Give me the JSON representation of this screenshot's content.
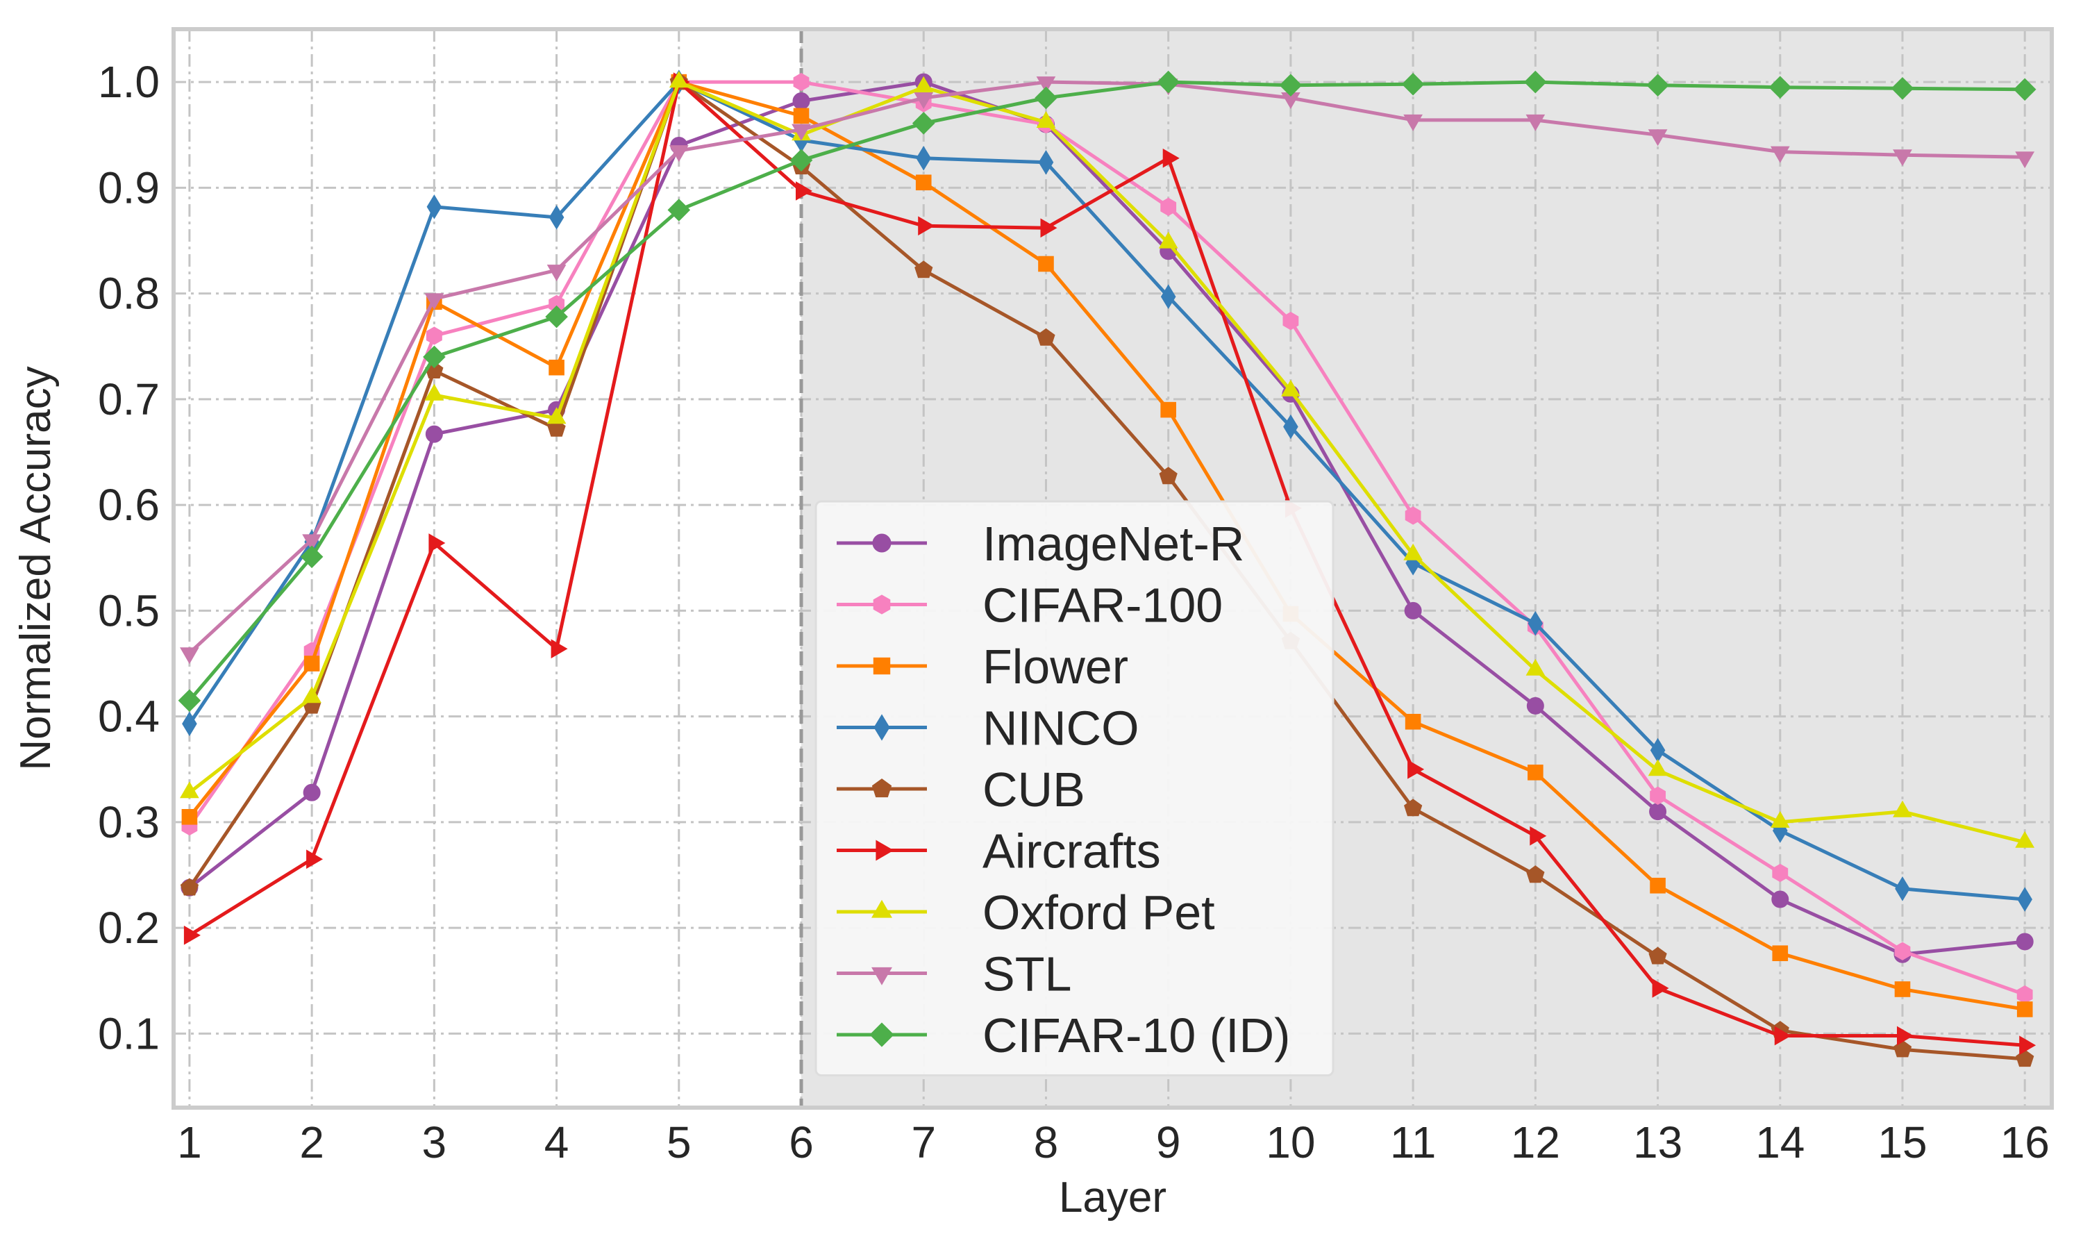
{
  "chart_data": {
    "type": "line",
    "title": "",
    "xlabel": "Layer",
    "ylabel": "Normalized  Accuracy",
    "x": [
      1,
      2,
      3,
      4,
      5,
      6,
      7,
      8,
      9,
      10,
      11,
      12,
      13,
      14,
      15,
      16
    ],
    "xlim": [
      0.87,
      16.22
    ],
    "ylim": [
      0.03,
      1.05
    ],
    "yticks": [
      0.1,
      0.2,
      0.3,
      0.4,
      0.5,
      0.6,
      0.7,
      0.8,
      0.9,
      1.0
    ],
    "ytick_labels": [
      "0.1",
      "0.2",
      "0.3",
      "0.4",
      "0.5",
      "0.6",
      "0.7",
      "0.8",
      "0.9",
      "1.0"
    ],
    "xtick_labels": [
      "1",
      "2",
      "3",
      "4",
      "5",
      "6",
      "7",
      "8",
      "9",
      "10",
      "11",
      "12",
      "13",
      "14",
      "15",
      "16"
    ],
    "shaded_region": {
      "from_x": 6,
      "to_x": 16.22,
      "color": "#e5e5e5"
    },
    "vline_x": 6,
    "grid": true,
    "legend_position": "center",
    "series": [
      {
        "name": "ImageNet-R",
        "color": "#984ea3",
        "marker": "circle",
        "values": [
          0.238,
          0.328,
          0.667,
          0.69,
          0.94,
          0.982,
          1.0,
          0.96,
          0.84,
          0.705,
          0.5,
          0.41,
          0.31,
          0.227,
          0.175,
          0.187
        ]
      },
      {
        "name": "CIFAR-100",
        "color": "#f781bf",
        "marker": "hexagon",
        "values": [
          0.296,
          0.462,
          0.76,
          0.79,
          1.0,
          1.0,
          0.98,
          0.96,
          0.882,
          0.774,
          0.59,
          0.485,
          0.325,
          0.252,
          0.178,
          0.137
        ]
      },
      {
        "name": "Flower",
        "color": "#ff7f00",
        "marker": "square",
        "values": [
          0.305,
          0.45,
          0.792,
          0.73,
          1.0,
          0.968,
          0.905,
          0.828,
          0.69,
          0.497,
          0.395,
          0.347,
          0.24,
          0.176,
          0.142,
          0.123
        ]
      },
      {
        "name": "NINCO",
        "color": "#377eb8",
        "marker": "thin_diamond",
        "values": [
          0.393,
          0.565,
          0.882,
          0.872,
          1.0,
          0.945,
          0.928,
          0.924,
          0.797,
          0.674,
          0.545,
          0.488,
          0.368,
          0.292,
          0.237,
          0.227
        ]
      },
      {
        "name": "CUB",
        "color": "#a65628",
        "marker": "pentagon",
        "values": [
          0.238,
          0.41,
          0.727,
          0.672,
          1.0,
          0.92,
          0.822,
          0.758,
          0.627,
          0.471,
          0.313,
          0.25,
          0.173,
          0.103,
          0.085,
          0.076
        ]
      },
      {
        "name": "Aircrafts",
        "color": "#e41a1c",
        "marker": "triangle_right",
        "values": [
          0.193,
          0.265,
          0.564,
          0.464,
          1.0,
          0.897,
          0.864,
          0.862,
          0.928,
          0.597,
          0.35,
          0.287,
          0.143,
          0.098,
          0.098,
          0.089
        ]
      },
      {
        "name": "Oxford Pet",
        "color": "#dede00",
        "marker": "triangle_up",
        "values": [
          0.328,
          0.418,
          0.704,
          0.682,
          1.0,
          0.95,
          0.995,
          0.962,
          0.848,
          0.708,
          0.553,
          0.444,
          0.349,
          0.3,
          0.31,
          0.281
        ]
      },
      {
        "name": "STL",
        "color": "#c878aa",
        "marker": "triangle_down",
        "values": [
          0.46,
          0.567,
          0.795,
          0.822,
          0.935,
          0.955,
          0.985,
          1.0,
          0.998,
          0.985,
          0.964,
          0.964,
          0.95,
          0.934,
          0.931,
          0.929
        ]
      },
      {
        "name": "CIFAR-10 (ID)",
        "color": "#4daf4a",
        "marker": "diamond",
        "values": [
          0.415,
          0.551,
          0.74,
          0.778,
          0.879,
          0.926,
          0.961,
          0.985,
          1.0,
          0.997,
          0.998,
          1.0,
          0.997,
          0.995,
          0.994,
          0.993
        ]
      }
    ]
  }
}
